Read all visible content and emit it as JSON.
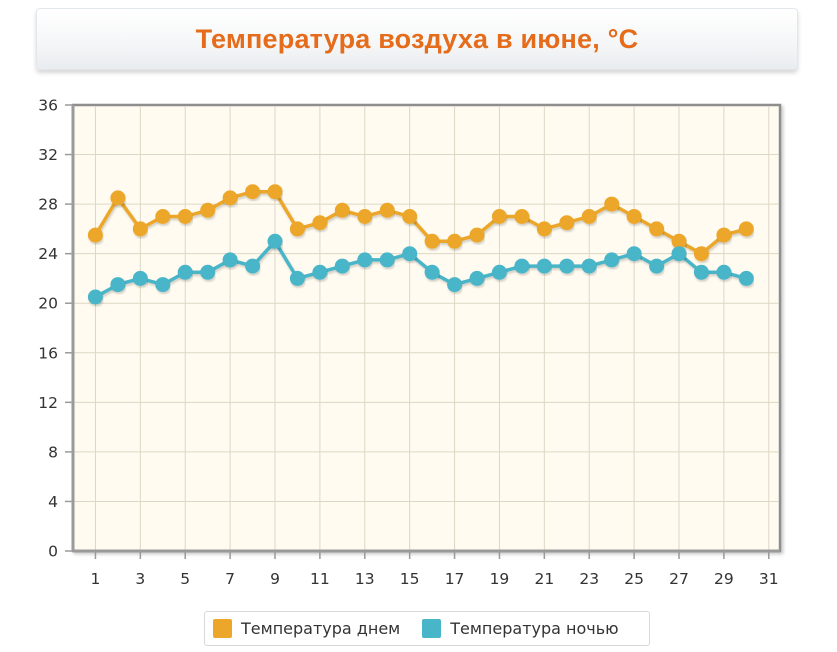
{
  "title": "Температура воздуха в июне, °C",
  "colors": {
    "title": "#e46c1b",
    "day": "#eca72a",
    "night": "#48b5c8",
    "plot_background": "#fffbf0",
    "axis": "#9a9a9a",
    "grid": "#ddd7c4"
  },
  "legend": [
    {
      "label": "Температура днем",
      "color": "#eca72a"
    },
    {
      "label": "Температура ночью",
      "color": "#48b5c8"
    }
  ],
  "chart_data": {
    "type": "line",
    "title": "Температура воздуха в июне, °C",
    "xlabel": "",
    "ylabel": "",
    "x": [
      1,
      2,
      3,
      4,
      5,
      6,
      7,
      8,
      9,
      10,
      11,
      12,
      13,
      14,
      15,
      16,
      17,
      18,
      19,
      20,
      21,
      22,
      23,
      24,
      25,
      26,
      27,
      28,
      29,
      30
    ],
    "series": [
      {
        "name": "Температура днем",
        "color": "#eca72a",
        "values": [
          25.5,
          28.5,
          26,
          27,
          27,
          27.5,
          28.5,
          29,
          29,
          26,
          26.5,
          27.5,
          27,
          27.5,
          27,
          25,
          25,
          25.5,
          27,
          27,
          26,
          26.5,
          27,
          28,
          27,
          26,
          25,
          24,
          25.5,
          26
        ]
      },
      {
        "name": "Температура ночью",
        "color": "#48b5c8",
        "values": [
          20.5,
          21.5,
          22,
          21.5,
          22.5,
          22.5,
          23.5,
          23,
          25,
          22,
          22.5,
          23,
          23.5,
          23.5,
          24,
          22.5,
          21.5,
          22,
          22.5,
          23,
          23,
          23,
          23,
          23.5,
          24,
          23,
          24,
          22.5,
          22.5,
          22
        ]
      }
    ],
    "xlim": [
      0,
      31.5
    ],
    "ylim": [
      0,
      36
    ],
    "x_ticks": [
      1,
      3,
      5,
      7,
      9,
      11,
      13,
      15,
      17,
      19,
      21,
      23,
      25,
      27,
      29,
      31
    ],
    "y_ticks": [
      0,
      4,
      8,
      12,
      16,
      20,
      24,
      28,
      32,
      36
    ],
    "grid": true,
    "legend_position": "bottom"
  }
}
